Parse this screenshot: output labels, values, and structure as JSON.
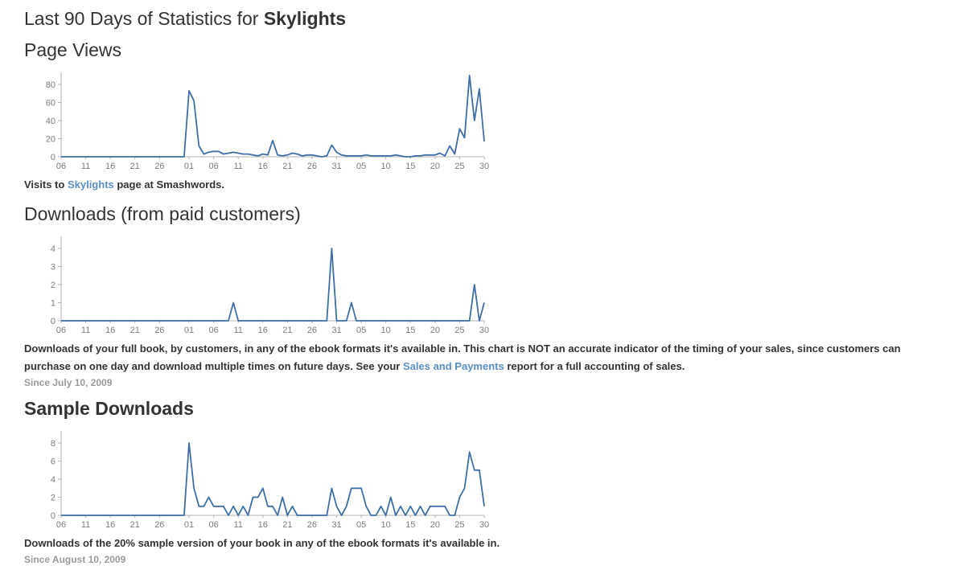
{
  "page": {
    "title_prefix": "Last 90 Days of Statistics for ",
    "title_book": "Skylights"
  },
  "colors": {
    "line": "#3d6ea5",
    "axis": "#b3b3b3",
    "tick_text": "#7c7c7c",
    "link": "#5b8dc8",
    "heading": "#333333",
    "muted": "#9a9a9a"
  },
  "sections": {
    "page_views": {
      "heading": "Page Views",
      "caption": {
        "before": "Visits to ",
        "link": "Skylights",
        "after": " page at Smashwords."
      }
    },
    "paid_downloads": {
      "heading": "Downloads (from paid customers)",
      "caption": {
        "before": "Downloads of your full book, by customers, in any of the ebook formats it's available in. This chart is NOT an accurate indicator of the timing of your sales, since customers can purchase on one day and download multiple times on future days. See your ",
        "link": "Sales and Payments",
        "after": " report for a full accounting of sales."
      },
      "since": "Since July 10, 2009"
    },
    "sample_downloads": {
      "heading": "Sample Downloads",
      "caption": {
        "text": "Downloads of the 20% sample version of your book in any of the ebook formats it's available in."
      },
      "since": "Since August 10, 2009"
    }
  },
  "chart_data": [
    {
      "id": "page-views",
      "type": "line",
      "title": "Page Views",
      "xlabel": "",
      "ylabel": "",
      "grid": false,
      "legend": "none",
      "x_tick_labels": [
        "06",
        "11",
        "16",
        "21",
        "26",
        "01",
        "06",
        "11",
        "16",
        "21",
        "26",
        "31",
        "05",
        "10",
        "15",
        "20",
        "25",
        "30"
      ],
      "x_tick_day_indices": [
        0,
        5,
        10,
        15,
        20,
        26,
        31,
        36,
        41,
        46,
        51,
        56,
        61,
        66,
        71,
        76,
        81,
        86
      ],
      "y_ticks": [
        0,
        20,
        40,
        60,
        80
      ],
      "ylim": [
        0,
        93
      ],
      "values": [
        0,
        0,
        0,
        0,
        0,
        0,
        0,
        0,
        0,
        0,
        0,
        0,
        0,
        0,
        0,
        0,
        0,
        0,
        0,
        0,
        0,
        0,
        0,
        0,
        0,
        0,
        73,
        62,
        12,
        3,
        5,
        6,
        6,
        3,
        4,
        5,
        4,
        3,
        3,
        2,
        1,
        3,
        2,
        18,
        2,
        1,
        2,
        4,
        3,
        1,
        2,
        2,
        1,
        0,
        1,
        13,
        5,
        2,
        1,
        1,
        1,
        1,
        2,
        1,
        1,
        1,
        1,
        1,
        2,
        1,
        0,
        0,
        1,
        1,
        2,
        2,
        2,
        4,
        1,
        12,
        3,
        31,
        21,
        90,
        40,
        75,
        17
      ]
    },
    {
      "id": "paid-downloads",
      "type": "line",
      "title": "Downloads (from paid customers)",
      "xlabel": "",
      "ylabel": "",
      "grid": false,
      "legend": "none",
      "x_tick_labels": [
        "06",
        "11",
        "16",
        "21",
        "26",
        "01",
        "06",
        "11",
        "16",
        "21",
        "26",
        "31",
        "05",
        "10",
        "15",
        "20",
        "25",
        "30"
      ],
      "x_tick_day_indices": [
        0,
        5,
        10,
        15,
        20,
        26,
        31,
        36,
        41,
        46,
        51,
        56,
        61,
        66,
        71,
        76,
        81,
        86
      ],
      "y_ticks": [
        0,
        1,
        2,
        3,
        4
      ],
      "ylim": [
        0,
        4.2
      ],
      "values": [
        0,
        0,
        0,
        0,
        0,
        0,
        0,
        0,
        0,
        0,
        0,
        0,
        0,
        0,
        0,
        0,
        0,
        0,
        0,
        0,
        0,
        0,
        0,
        0,
        0,
        0,
        0,
        0,
        0,
        0,
        0,
        0,
        0,
        0,
        0,
        1,
        0,
        0,
        0,
        0,
        0,
        0,
        0,
        0,
        0,
        0,
        0,
        0,
        0,
        0,
        0,
        0,
        0,
        0,
        0,
        4,
        0,
        0,
        0,
        1,
        0,
        0,
        0,
        0,
        0,
        0,
        0,
        0,
        0,
        0,
        0,
        0,
        0,
        0,
        0,
        0,
        0,
        0,
        0,
        0,
        0,
        0,
        0,
        0,
        2,
        0,
        1
      ]
    },
    {
      "id": "sample-downloads",
      "type": "line",
      "title": "Sample Downloads",
      "xlabel": "",
      "ylabel": "",
      "grid": false,
      "legend": "none",
      "x_tick_labels": [
        "06",
        "11",
        "16",
        "21",
        "26",
        "01",
        "06",
        "11",
        "16",
        "21",
        "26",
        "31",
        "05",
        "10",
        "15",
        "20",
        "25",
        "30"
      ],
      "x_tick_day_indices": [
        0,
        5,
        10,
        15,
        20,
        26,
        31,
        36,
        41,
        46,
        51,
        56,
        61,
        66,
        71,
        76,
        81,
        86
      ],
      "y_ticks": [
        0,
        2,
        4,
        6,
        8
      ],
      "ylim": [
        0,
        8.4
      ],
      "values": [
        0,
        0,
        0,
        0,
        0,
        0,
        0,
        0,
        0,
        0,
        0,
        0,
        0,
        0,
        0,
        0,
        0,
        0,
        0,
        0,
        0,
        0,
        0,
        0,
        0,
        0,
        8,
        3,
        1,
        1,
        2,
        1,
        1,
        1,
        0,
        1,
        0,
        1,
        0,
        2,
        2,
        3,
        1,
        1,
        0,
        2,
        0,
        1,
        0,
        0,
        0,
        0,
        0,
        0,
        0,
        3,
        1,
        0,
        1,
        3,
        3,
        3,
        1,
        0,
        0,
        1,
        0,
        2,
        0,
        1,
        0,
        1,
        0,
        1,
        0,
        1,
        1,
        1,
        1,
        0,
        0,
        2,
        3,
        7,
        5,
        5,
        1
      ]
    }
  ]
}
